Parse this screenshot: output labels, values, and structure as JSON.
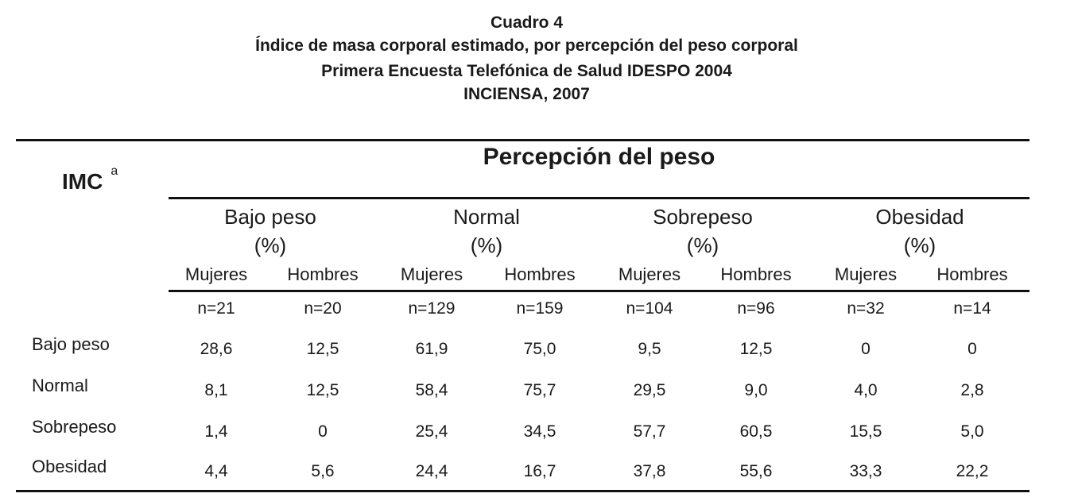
{
  "title": {
    "line1": "Cuadro 4",
    "line2": "Índice de masa corporal estimado, por percepción del peso corporal",
    "line3": "Primera Encuesta Telefónica de Salud IDESPO 2004",
    "line4": "INCIENSA, 2007"
  },
  "table": {
    "row_header": "IMC",
    "row_header_note": "a",
    "group_header": "Percepción del peso",
    "groups": [
      {
        "name": "Bajo peso",
        "unit": "(%)"
      },
      {
        "name": "Normal",
        "unit": "(%)"
      },
      {
        "name": "Sobrepeso",
        "unit": "(%)"
      },
      {
        "name": "Obesidad",
        "unit": "(%)"
      }
    ],
    "sub_headers": [
      "Mujeres",
      "Hombres",
      "Mujeres",
      "Hombres",
      "Mujeres",
      "Hombres",
      "Mujeres",
      "Hombres"
    ],
    "n_values": [
      "n=21",
      "n=20",
      "n=129",
      "n=159",
      "n=104",
      "n=96",
      "n=32",
      "n=14"
    ],
    "rows": [
      {
        "label": "Bajo peso",
        "values": [
          "28,6",
          "12,5",
          "61,9",
          "75,0",
          "9,5",
          "12,5",
          "0",
          "0"
        ]
      },
      {
        "label": "Normal",
        "values": [
          "8,1",
          "12,5",
          "58,4",
          "75,7",
          "29,5",
          "9,0",
          "4,0",
          "2,8"
        ]
      },
      {
        "label": "Sobrepeso",
        "values": [
          "1,4",
          "0",
          "25,4",
          "34,5",
          "57,7",
          "60,5",
          "15,5",
          "5,0"
        ]
      },
      {
        "label": "Obesidad",
        "values": [
          "4,4",
          "5,6",
          "24,4",
          "16,7",
          "37,8",
          "55,6",
          "33,3",
          "22,2"
        ]
      }
    ]
  }
}
